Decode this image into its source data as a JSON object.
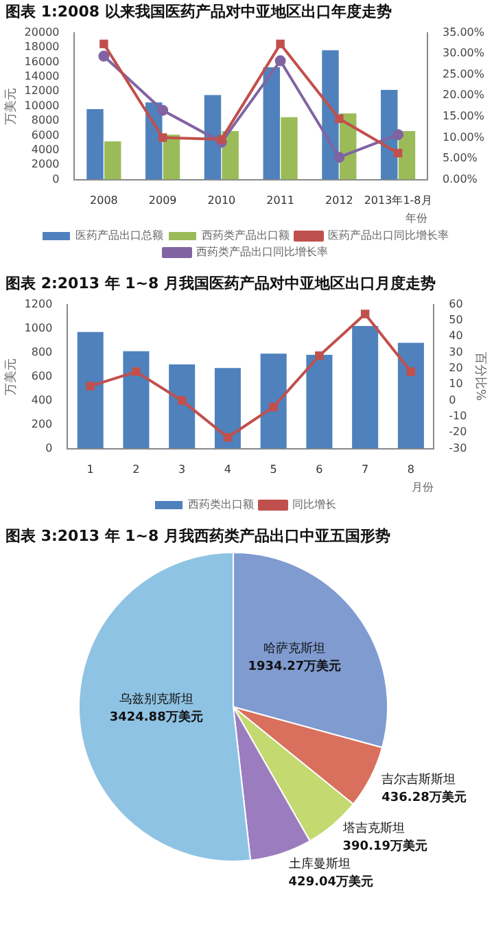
{
  "chart_data": [
    {
      "type": "bar",
      "title": "图表 1:2008 以来我国医药产品对中亚地区出口年度走势",
      "xlabel": "年份",
      "ylabel": "万美元",
      "categories": [
        "2008",
        "2009",
        "2010",
        "2011",
        "2012",
        "2013年1-8月"
      ],
      "ylim": [
        0,
        20000
      ],
      "yticks": [
        0,
        2000,
        4000,
        6000,
        8000,
        10000,
        12000,
        14000,
        16000,
        18000,
        20000
      ],
      "y2lim": [
        0,
        35
      ],
      "y2ticks": [
        {
          "value": 0,
          "label": "0.00%"
        },
        {
          "value": 5,
          "label": "5.00%"
        },
        {
          "value": 10,
          "label": "10.00%"
        },
        {
          "value": 15,
          "label": "15.00%"
        },
        {
          "value": 20,
          "label": "20.00%"
        },
        {
          "value": 25,
          "label": "25.00%"
        },
        {
          "value": 30,
          "label": "30.00%"
        },
        {
          "value": 35,
          "label": "35.00%"
        }
      ],
      "legend": "bottom",
      "series": [
        {
          "name": "医药产品出口总额",
          "color": "#4f81bd",
          "values": [
            9600,
            10500,
            11500,
            15300,
            17600,
            12200
          ]
        },
        {
          "name": "西药类产品出口额",
          "color": "#9bbb59",
          "values": [
            5200,
            6100,
            6600,
            8500,
            9000,
            6600
          ]
        },
        {
          "name": "医药产品出口同比增长率",
          "type": "line",
          "axis": "y2",
          "marker": "square",
          "color": "#c0504d",
          "values": [
            32.3,
            10.0,
            9.6,
            32.3,
            14.5,
            6.3
          ]
        },
        {
          "name": "西药类产品出口同比增长率",
          "type": "line",
          "axis": "y2",
          "marker": "circle",
          "color": "#8064a2",
          "values": [
            29.4,
            16.5,
            8.9,
            28.3,
            5.3,
            10.7
          ]
        }
      ]
    },
    {
      "type": "bar",
      "title": "图表 2:2013 年 1~8 月我国医药产品对中亚地区出口月度走势",
      "xlabel": "月份",
      "ylabel": "万美元",
      "y2label": "百分比%",
      "categories": [
        "1",
        "2",
        "3",
        "4",
        "5",
        "6",
        "7",
        "8"
      ],
      "ylim": [
        0,
        1200
      ],
      "yticks": [
        0,
        200,
        400,
        600,
        800,
        1000,
        1200
      ],
      "y2lim": [
        -30,
        60
      ],
      "y2ticks": [
        -30,
        -20,
        -10,
        0,
        10,
        20,
        30,
        40,
        50,
        60
      ],
      "legend": "bottom",
      "series": [
        {
          "name": "西药类出口额",
          "color": "#4f81bd",
          "values": [
            970,
            810,
            700,
            670,
            790,
            780,
            1020,
            880
          ]
        },
        {
          "name": "同比增长",
          "type": "line",
          "axis": "y2",
          "marker": "square",
          "color": "#c0504d",
          "values": [
            9,
            18,
            0,
            -23,
            -4,
            28,
            54,
            18
          ]
        }
      ]
    },
    {
      "type": "pie",
      "title": "图表 3:2013 年 1~8 月我西药类产品出口中亚五国形势",
      "categories": [
        "哈萨克斯坦",
        "吉尔吉斯斯坦",
        "塔吉克斯坦",
        "土库曼斯坦",
        "乌兹别克斯坦"
      ],
      "values": [
        1934.27,
        436.28,
        390.19,
        429.04,
        3424.88
      ],
      "value_labels": [
        "1934.27万美元",
        "436.28万美元",
        "390.19万美元",
        "429.04万美元",
        "3424.88万美元"
      ],
      "colors": [
        "#7f9bd0",
        "#d9705d",
        "#c4d96f",
        "#9b7dbf",
        "#8ec3e3"
      ]
    }
  ]
}
